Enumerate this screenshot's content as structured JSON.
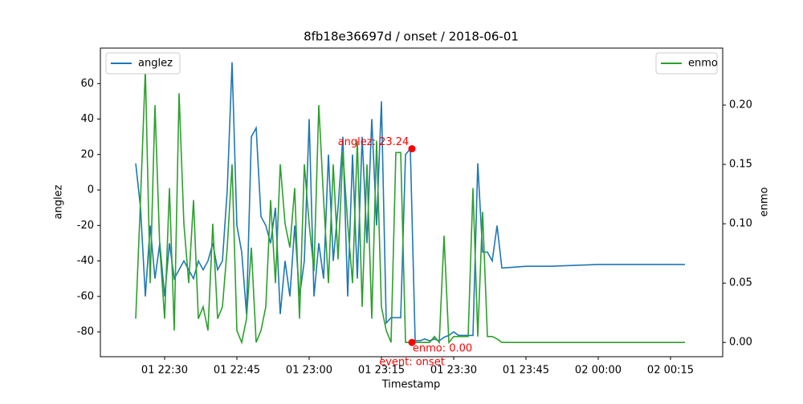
{
  "chart_data": {
    "type": "line",
    "title": "8fb18e36697d / onset / 2018-06-01",
    "x_label": "Timestamp",
    "y_label": "anglez",
    "y2_label": "enmo",
    "x": [
      "2018-06-01T22:24",
      "2018-06-01T22:25",
      "2018-06-01T22:26",
      "2018-06-01T22:27",
      "2018-06-01T22:28",
      "2018-06-01T22:29",
      "2018-06-01T22:30",
      "2018-06-01T22:31",
      "2018-06-01T22:32",
      "2018-06-01T22:33",
      "2018-06-01T22:34",
      "2018-06-01T22:35",
      "2018-06-01T22:36",
      "2018-06-01T22:37",
      "2018-06-01T22:38",
      "2018-06-01T22:39",
      "2018-06-01T22:40",
      "2018-06-01T22:41",
      "2018-06-01T22:42",
      "2018-06-01T22:43",
      "2018-06-01T22:44",
      "2018-06-01T22:45",
      "2018-06-01T22:46",
      "2018-06-01T22:47",
      "2018-06-01T22:48",
      "2018-06-01T22:49",
      "2018-06-01T22:50",
      "2018-06-01T22:51",
      "2018-06-01T22:52",
      "2018-06-01T22:53",
      "2018-06-01T22:54",
      "2018-06-01T22:55",
      "2018-06-01T22:56",
      "2018-06-01T22:57",
      "2018-06-01T22:58",
      "2018-06-01T22:59",
      "2018-06-01T23:00",
      "2018-06-01T23:01",
      "2018-06-01T23:02",
      "2018-06-01T23:03",
      "2018-06-01T23:04",
      "2018-06-01T23:05",
      "2018-06-01T23:06",
      "2018-06-01T23:07",
      "2018-06-01T23:08",
      "2018-06-01T23:09",
      "2018-06-01T23:10",
      "2018-06-01T23:11",
      "2018-06-01T23:12",
      "2018-06-01T23:13",
      "2018-06-01T23:14",
      "2018-06-01T23:15",
      "2018-06-01T23:16",
      "2018-06-01T23:17",
      "2018-06-01T23:18",
      "2018-06-01T23:19",
      "2018-06-01T23:20",
      "2018-06-01T23:21",
      "2018-06-01T23:22",
      "2018-06-01T23:23",
      "2018-06-01T23:24",
      "2018-06-01T23:25",
      "2018-06-01T23:26",
      "2018-06-01T23:27",
      "2018-06-01T23:28",
      "2018-06-01T23:29",
      "2018-06-01T23:30",
      "2018-06-01T23:31",
      "2018-06-01T23:32",
      "2018-06-01T23:33",
      "2018-06-01T23:34",
      "2018-06-01T23:35",
      "2018-06-01T23:36",
      "2018-06-01T23:37",
      "2018-06-01T23:38",
      "2018-06-01T23:39",
      "2018-06-01T23:40",
      "2018-06-01T23:45",
      "2018-06-01T23:50",
      "2018-06-02T00:00",
      "2018-06-02T00:10",
      "2018-06-02T00:18"
    ],
    "series": [
      {
        "name": "anglez",
        "color": "#1f77b4",
        "values": [
          15,
          -10,
          -60,
          -20,
          -50,
          -30,
          -60,
          -30,
          -50,
          -45,
          -40,
          -45,
          -50,
          -40,
          -45,
          -40,
          -30,
          -45,
          -40,
          0,
          72,
          -20,
          -35,
          -70,
          30,
          35,
          -15,
          -20,
          -30,
          -10,
          -70,
          -40,
          -60,
          -20,
          -60,
          -40,
          40,
          -60,
          -30,
          -50,
          20,
          -40,
          -10,
          30,
          -60,
          20,
          -50,
          30,
          -30,
          40,
          -20,
          50,
          -75,
          -72,
          -72,
          -72,
          20,
          23.24,
          -85,
          -85,
          -84,
          -85,
          -84,
          -85,
          -83,
          -82,
          -80,
          -82,
          -82,
          -82,
          -82,
          15,
          -35,
          -35,
          -40,
          -20,
          -44,
          -43,
          -43,
          -42,
          -42,
          -42
        ]
      },
      {
        "name": "enmo",
        "color": "#2ca02c",
        "axis": "y2",
        "values": [
          0.02,
          0.12,
          0.23,
          0.05,
          0.2,
          0.08,
          0.02,
          0.13,
          0.01,
          0.21,
          0.1,
          0.05,
          0.12,
          0.02,
          0.03,
          0.01,
          0.1,
          0.02,
          0.03,
          0.08,
          0.15,
          0.01,
          0.0,
          0.02,
          0.08,
          0.0,
          0.01,
          0.03,
          0.12,
          0.05,
          0.15,
          0.1,
          0.08,
          0.13,
          0.02,
          0.15,
          0.1,
          0.06,
          0.2,
          0.12,
          0.05,
          0.15,
          0.07,
          0.16,
          0.1,
          0.05,
          0.17,
          0.03,
          0.15,
          0.02,
          0.17,
          0.03,
          0.01,
          0.0,
          0.16,
          0.16,
          0.0,
          0.0,
          0.0,
          0.0,
          0.0,
          0.0,
          0.005,
          0.0,
          0.09,
          0.0,
          0.005,
          0.005,
          0.005,
          0.005,
          0.13,
          0.005,
          0.11,
          0.005,
          0.005,
          0.003,
          0.0,
          0.0,
          0.0,
          0.0,
          0.0,
          0.0
        ]
      }
    ],
    "xlim": [
      "2018-06-01T22:16:40",
      "2018-06-02T00:25:50"
    ],
    "xticks": [
      {
        "value": "2018-06-01T22:30",
        "label": "01 22:30"
      },
      {
        "value": "2018-06-01T22:45",
        "label": "01 22:45"
      },
      {
        "value": "2018-06-01T23:00",
        "label": "01 23:00"
      },
      {
        "value": "2018-06-01T23:15",
        "label": "01 23:15"
      },
      {
        "value": "2018-06-01T23:30",
        "label": "01 23:30"
      },
      {
        "value": "2018-06-01T23:45",
        "label": "01 23:45"
      },
      {
        "value": "2018-06-02T00:00",
        "label": "02 00:00"
      },
      {
        "value": "2018-06-02T00:15",
        "label": "02 00:15"
      }
    ],
    "ylim": [
      -94,
      80
    ],
    "yticks": [
      -80,
      -60,
      -40,
      -20,
      0,
      20,
      40,
      60
    ],
    "y2lim": [
      -0.012,
      0.248
    ],
    "y2ticks": [
      {
        "value": 0,
        "label": "0.00"
      },
      {
        "value": 0.05,
        "label": "0.05"
      },
      {
        "value": 0.1,
        "label": "0.10"
      },
      {
        "value": 0.15,
        "label": "0.15"
      },
      {
        "value": 0.2,
        "label": "0.20"
      }
    ],
    "annotations": [
      {
        "text": "anglez: 23.24",
        "x": "2018-06-01T23:21:20",
        "y": 23.24,
        "color": "red"
      },
      {
        "text": "enmo: 0.00",
        "x": "2018-06-01T23:21:20",
        "y": 0,
        "axis": "y2",
        "color": "red"
      }
    ],
    "event_label": "event: onset"
  }
}
